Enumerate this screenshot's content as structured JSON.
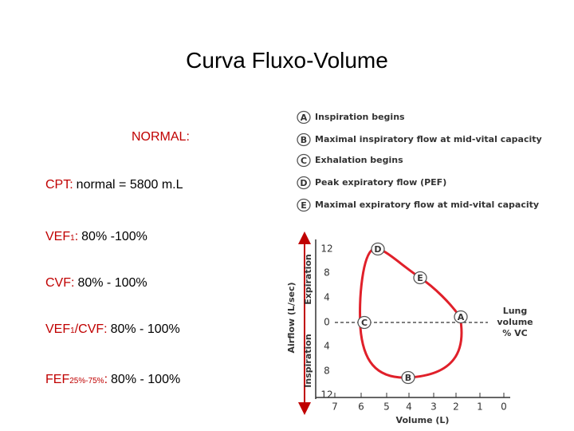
{
  "title": "Curva Fluxo-Volume",
  "normal_heading": "NORMAL:",
  "parameters": [
    {
      "label": "CPT:",
      "value": "normal = 5800 m.L"
    },
    {
      "label": "VEF",
      "label_sub": "1",
      "label_end": ":",
      "value": "80% -100%"
    },
    {
      "label": "CVF:",
      "value": "80% - 100%"
    },
    {
      "label": "VEF",
      "label_sub": "1",
      "label_end": "/CVF:",
      "value": "80% - 100%"
    },
    {
      "label": "FEF",
      "label_sub": "25%-75%",
      "label_end": ":",
      "value": "80% - 100%"
    }
  ],
  "figure": {
    "legend": [
      {
        "letter": "A",
        "text": "Inspiration begins"
      },
      {
        "letter": "B",
        "text": "Maximal inspiratory flow at mid-vital capacity"
      },
      {
        "letter": "C",
        "text": "Exhalation begins"
      },
      {
        "letter": "D",
        "text": "Peak expiratory flow (PEF)"
      },
      {
        "letter": "E",
        "text": "Maximal expiratory flow at mid-vital capacity"
      }
    ],
    "y_axis_title": "Airflow (L/sec)",
    "expiration_label": "Expiration",
    "inspiration_label": "Inspiration",
    "y_tick_labels": [
      "12",
      "8",
      "4",
      "0",
      "4",
      "8",
      "12"
    ],
    "x_tick_labels": [
      "7",
      "6",
      "5",
      "4",
      "3",
      "2",
      "1",
      "0"
    ],
    "x_axis_title": "Volume (L)",
    "lung_volume_label": [
      "Lung",
      "volume",
      "% VC"
    ],
    "point_labels": [
      "D",
      "E",
      "A",
      "C",
      "B"
    ]
  }
}
